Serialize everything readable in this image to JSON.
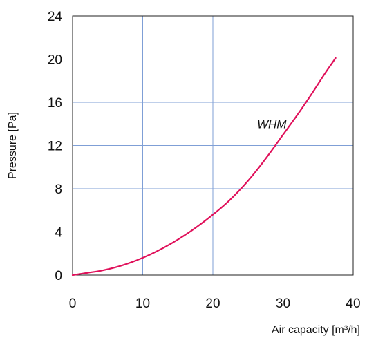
{
  "chart_data": {
    "type": "line",
    "title": "",
    "xlabel": "Air capacity [m³/h]",
    "ylabel": "Pressure [Pa]",
    "xlim": [
      0,
      40
    ],
    "ylim": [
      0,
      24
    ],
    "xticks": [
      "0",
      "10",
      "20",
      "30",
      "40"
    ],
    "yticks": [
      "0",
      "4",
      "8",
      "12",
      "16",
      "20",
      "24"
    ],
    "grid": true,
    "series": [
      {
        "name": "WHM",
        "color": "#e0105a",
        "points": [
          [
            0,
            0
          ],
          [
            2,
            0.2
          ],
          [
            4,
            0.4
          ],
          [
            6,
            0.7
          ],
          [
            8,
            1.1
          ],
          [
            10,
            1.6
          ],
          [
            12,
            2.2
          ],
          [
            14,
            2.9
          ],
          [
            16,
            3.7
          ],
          [
            18,
            4.6
          ],
          [
            20,
            5.6
          ],
          [
            22,
            6.7
          ],
          [
            24,
            8.0
          ],
          [
            26,
            9.5
          ],
          [
            28,
            11.2
          ],
          [
            30,
            13.0
          ],
          [
            32,
            14.8
          ],
          [
            34,
            16.7
          ],
          [
            36,
            18.7
          ],
          [
            37.5,
            20.1
          ]
        ]
      }
    ],
    "annotations": [
      {
        "text": "WHM",
        "x": 26.3,
        "y": 14.0
      }
    ]
  }
}
